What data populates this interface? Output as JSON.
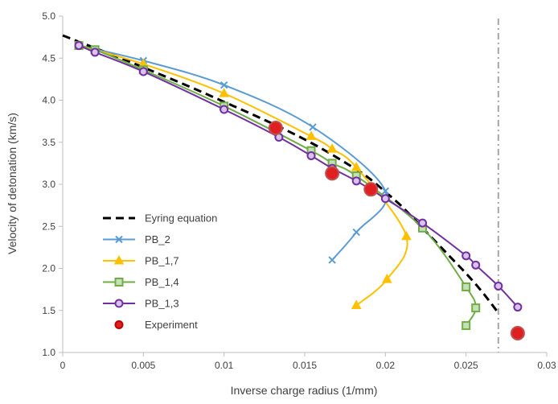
{
  "chart_data": {
    "type": "line",
    "xlabel": "Inverse charge radius (1/mm)",
    "ylabel": "Velocity of detonation (km/s)",
    "xlim": [
      0,
      0.03
    ],
    "ylim": [
      1.0,
      5.0
    ],
    "xticks": [
      0,
      0.005,
      0.01,
      0.015,
      0.02,
      0.025,
      0.03
    ],
    "xtick_labels": [
      "0",
      "0.005",
      "0.01",
      "0.015",
      "0.02",
      "0.025",
      "0.03"
    ],
    "yticks": [
      1.0,
      1.5,
      2.0,
      2.5,
      3.0,
      3.5,
      4.0,
      4.5,
      5.0
    ],
    "ytick_labels": [
      "1.0",
      "1.5",
      "2.0",
      "2.5",
      "3.0",
      "3.5",
      "4.0",
      "4.5",
      "5.0"
    ],
    "grid": false,
    "legend_position": "lower-left",
    "vertical_reference_line": {
      "x": 0.027,
      "color": "#a6a6a6",
      "style": "dash-dot"
    },
    "series": [
      {
        "name": "Eyring equation",
        "kind": "dashed-line",
        "color": "#000000",
        "x": [
          0,
          0.002,
          0.004,
          0.006,
          0.008,
          0.01,
          0.012,
          0.014,
          0.016,
          0.018,
          0.019,
          0.02,
          0.021,
          0.022,
          0.023,
          0.024,
          0.025,
          0.026,
          0.027
        ],
        "y": [
          4.77,
          4.62,
          4.47,
          4.31,
          4.15,
          3.98,
          3.81,
          3.63,
          3.43,
          3.2,
          3.07,
          2.91,
          2.74,
          2.54,
          2.34,
          2.14,
          1.94,
          1.72,
          1.47
        ]
      },
      {
        "name": "PB_2",
        "kind": "line-marker",
        "marker": "x",
        "color": "#5b9bd5",
        "points": [
          [
            0.001,
            4.65
          ],
          [
            0.005,
            4.47
          ],
          [
            0.01,
            4.18
          ],
          [
            0.0155,
            3.68
          ],
          [
            0.02,
            2.92
          ],
          [
            0.0182,
            2.43
          ],
          [
            0.0167,
            2.1
          ]
        ]
      },
      {
        "name": "PB_1,7",
        "kind": "line-marker",
        "marker": "triangle",
        "color": "#ffc000",
        "points": [
          [
            0.001,
            4.65
          ],
          [
            0.005,
            4.43
          ],
          [
            0.01,
            4.08
          ],
          [
            0.0154,
            3.57
          ],
          [
            0.0167,
            3.42
          ],
          [
            0.0182,
            3.2
          ],
          [
            0.0213,
            2.38
          ],
          [
            0.0201,
            1.87
          ],
          [
            0.0182,
            1.56
          ]
        ]
      },
      {
        "name": "PB_1,4",
        "kind": "line-marker",
        "marker": "square",
        "color": "#70ad47",
        "points": [
          [
            0.001,
            4.65
          ],
          [
            0.002,
            4.6
          ],
          [
            0.005,
            4.36
          ],
          [
            0.01,
            3.93
          ],
          [
            0.0154,
            3.4
          ],
          [
            0.0167,
            3.25
          ],
          [
            0.0182,
            3.1
          ],
          [
            0.0223,
            2.48
          ],
          [
            0.025,
            1.78
          ],
          [
            0.0256,
            1.53
          ],
          [
            0.025,
            1.32
          ]
        ]
      },
      {
        "name": "PB_1,3",
        "kind": "line-marker",
        "marker": "circle",
        "color": "#7030a0",
        "points": [
          [
            0.001,
            4.65
          ],
          [
            0.002,
            4.57
          ],
          [
            0.005,
            4.34
          ],
          [
            0.01,
            3.89
          ],
          [
            0.0134,
            3.56
          ],
          [
            0.0154,
            3.34
          ],
          [
            0.0167,
            3.19
          ],
          [
            0.0182,
            3.04
          ],
          [
            0.02,
            2.83
          ],
          [
            0.0223,
            2.54
          ],
          [
            0.025,
            2.15
          ],
          [
            0.0256,
            2.04
          ],
          [
            0.027,
            1.79
          ],
          [
            0.0282,
            1.54
          ]
        ]
      },
      {
        "name": "Experiment",
        "kind": "marker-only",
        "marker": "big-circle",
        "color": "#c00000",
        "points": [
          [
            0.0132,
            3.67
          ],
          [
            0.0167,
            3.13
          ],
          [
            0.0191,
            2.94
          ],
          [
            0.0282,
            1.23
          ]
        ]
      }
    ]
  }
}
